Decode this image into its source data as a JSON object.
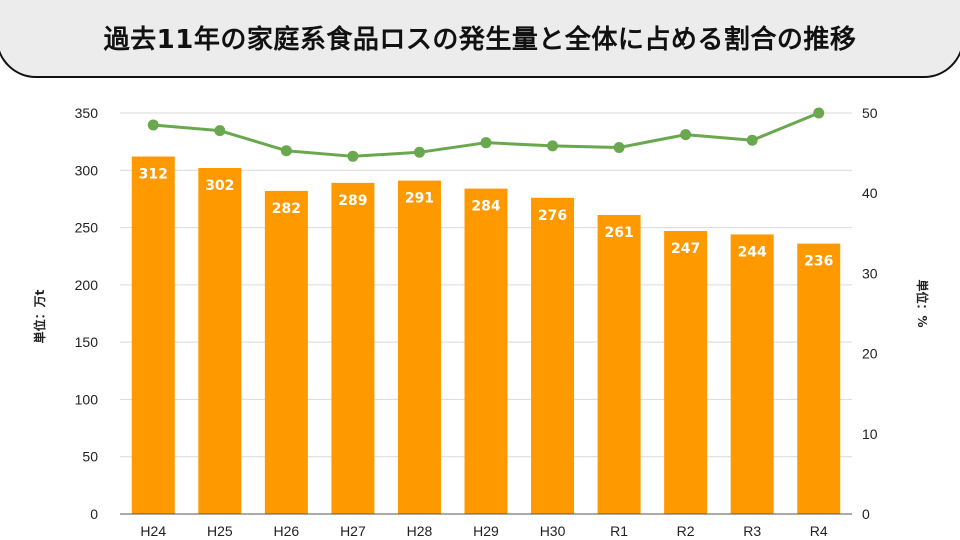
{
  "title": "過去11年の家庭系食品ロスの発生量と全体に占める割合の推移",
  "colors": {
    "bar": "#FF9900",
    "line": "#6AA84F",
    "grid": "#D9D9D9",
    "baseline": "#555555",
    "bar_label": "#FFFFFF",
    "banner_bg": "#ECECEC"
  },
  "chart_data": {
    "type": "bar",
    "categories": [
      "H24",
      "H25",
      "H26",
      "H27",
      "H28",
      "H29",
      "H30",
      "R1",
      "R2",
      "R3",
      "R4"
    ],
    "series": [
      {
        "type": "bar",
        "axis": "left",
        "values": [
          312,
          302,
          282,
          289,
          291,
          284,
          276,
          261,
          247,
          244,
          236
        ]
      },
      {
        "type": "line",
        "axis": "right",
        "values": [
          48.5,
          47.8,
          45.3,
          44.6,
          45.1,
          46.3,
          45.9,
          45.7,
          47.3,
          46.6,
          50.0
        ]
      }
    ],
    "ylabel": "単位：万t",
    "ylabel_right": "単位：%",
    "ylim": [
      0,
      350
    ],
    "yticks": [
      0,
      50,
      100,
      150,
      200,
      250,
      300,
      350
    ],
    "ylim_right": [
      0,
      50
    ],
    "yticks_right": [
      0,
      10,
      20,
      30,
      40,
      50
    ],
    "grid": true,
    "data_labels": true
  }
}
